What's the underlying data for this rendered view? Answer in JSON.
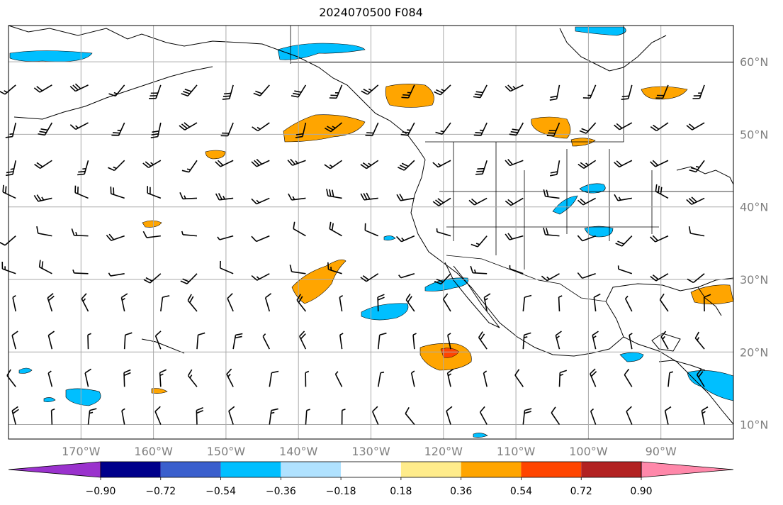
{
  "title": "2024070500 F084",
  "map": {
    "lon_range": [
      -180,
      -80
    ],
    "lat_range": [
      8,
      65
    ],
    "lon_ticks": [
      {
        "lon": -170,
        "label": "170°W"
      },
      {
        "lon": -160,
        "label": "160°W"
      },
      {
        "lon": -150,
        "label": "150°W"
      },
      {
        "lon": -140,
        "label": "140°W"
      },
      {
        "lon": -130,
        "label": "130°W"
      },
      {
        "lon": -120,
        "label": "120°W"
      },
      {
        "lon": -110,
        "label": "110°W"
      },
      {
        "lon": -100,
        "label": "100°W"
      },
      {
        "lon": -90,
        "label": "90°W"
      }
    ],
    "lat_ticks": [
      {
        "lat": 10,
        "label": "10°N"
      },
      {
        "lat": 20,
        "label": "20°N"
      },
      {
        "lat": 30,
        "label": "30°N"
      },
      {
        "lat": 40,
        "label": "40°N"
      },
      {
        "lat": 50,
        "label": "50°N"
      },
      {
        "lat": 60,
        "label": "60°N"
      }
    ],
    "grid": true,
    "barbs": "wind barbs on a 5-degree grid"
  },
  "colorbar": {
    "colors": [
      "#9a32cd",
      "#00008b",
      "#3a5fcd",
      "#00bfff",
      "#b0e2ff",
      "#ffffff",
      "#ffec8b",
      "#ffa500",
      "#ff4500",
      "#b22222",
      "#ff88aa"
    ],
    "labels": [
      "−0.90",
      "−0.72",
      "−0.54",
      "−0.36",
      "−0.18",
      "0.18",
      "0.36",
      "0.54",
      "0.72",
      "0.90"
    ]
  },
  "colors": {
    "negative": "#00bfff",
    "positive": "#ffa500",
    "strong_positive": "#ff4500"
  }
}
